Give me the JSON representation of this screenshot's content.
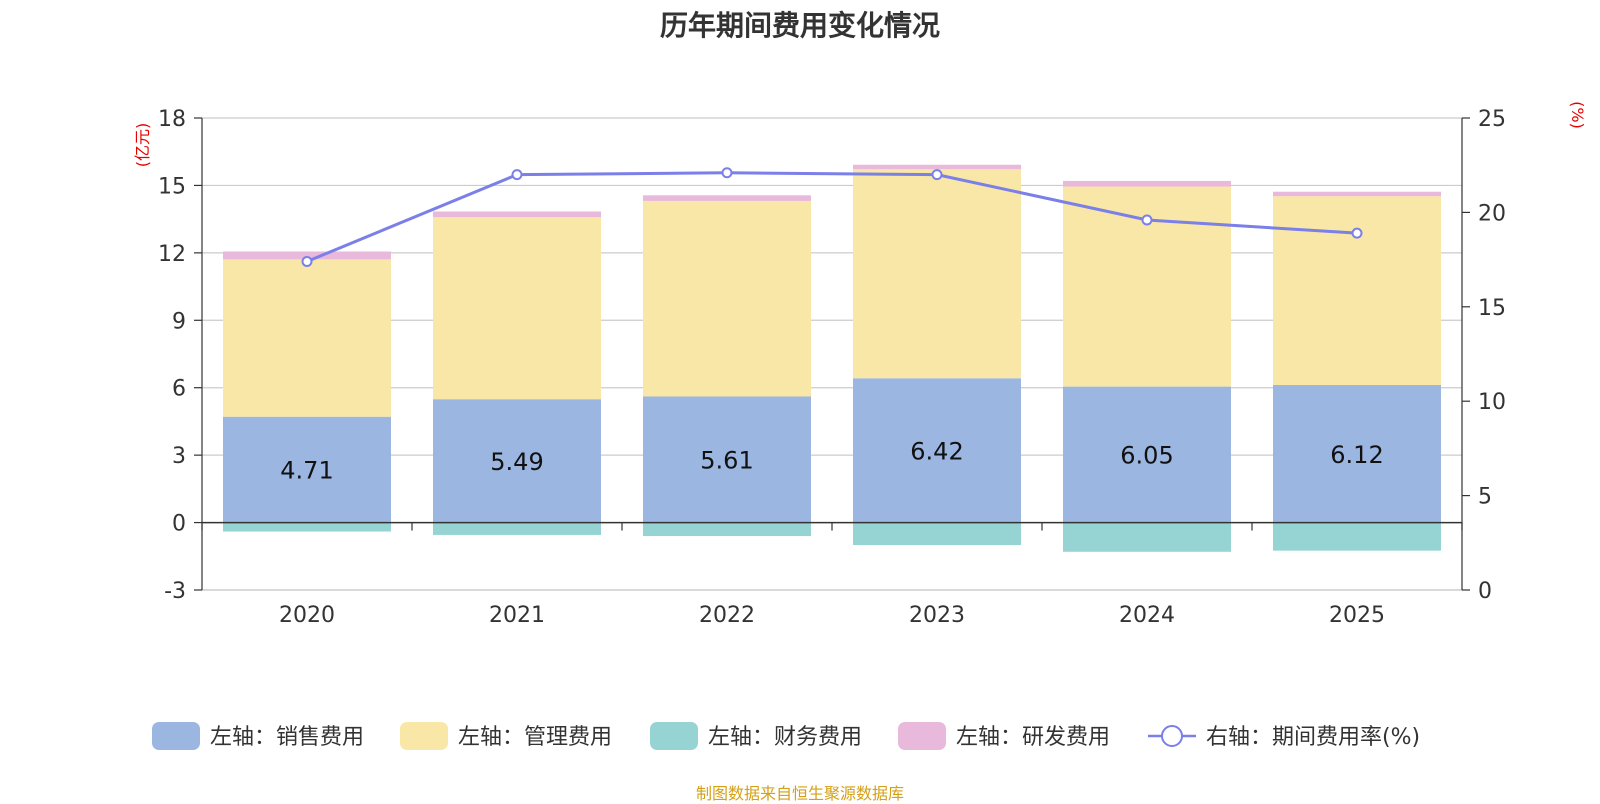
{
  "title": "历年期间费用变化情况",
  "source_note": "制图数据来自恒生聚源数据库",
  "colors": {
    "sales": "#9bb7e1",
    "management": "#f8e7a7",
    "finance": "#96d4d4",
    "rnd": "#e8b9db",
    "line": "#7b7fe8",
    "axis_unit": "#e60000",
    "grid": "#cccccc"
  },
  "chart_data": {
    "type": "bar",
    "stacked": true,
    "title": "历年期间费用变化情况",
    "categories": [
      "2020",
      "2021",
      "2022",
      "2023",
      "2024",
      "2025"
    ],
    "left_axis": {
      "unit": "(亿元)",
      "ylim": [
        -3,
        18
      ],
      "ticks": [
        -3,
        0,
        3,
        6,
        9,
        12,
        15,
        18
      ]
    },
    "right_axis": {
      "unit": "(%)",
      "ylim": [
        0,
        25
      ],
      "ticks": [
        0,
        5,
        10,
        15,
        20,
        25
      ]
    },
    "series": [
      {
        "key": "sales",
        "name": "左轴：销售费用",
        "axis": "left",
        "values": [
          4.71,
          5.49,
          5.61,
          6.42,
          6.05,
          6.12
        ],
        "labels": [
          "4.71",
          "5.49",
          "5.61",
          "6.42",
          "6.05",
          "6.12"
        ]
      },
      {
        "key": "management",
        "name": "左轴：管理费用",
        "axis": "left",
        "values": [
          7.0,
          8.1,
          8.7,
          9.3,
          8.9,
          8.4
        ]
      },
      {
        "key": "finance",
        "name": "左轴：财务费用",
        "axis": "left",
        "values": [
          -0.4,
          -0.55,
          -0.6,
          -1.0,
          -1.3,
          -1.25
        ]
      },
      {
        "key": "rnd",
        "name": "左轴：研发费用",
        "axis": "left",
        "values": [
          0.35,
          0.25,
          0.25,
          0.2,
          0.25,
          0.2
        ]
      },
      {
        "key": "rate",
        "name": "右轴：期间费用率(%)",
        "axis": "right",
        "type": "line",
        "values": [
          17.4,
          22.0,
          22.1,
          22.0,
          19.6,
          18.9
        ]
      }
    ]
  }
}
